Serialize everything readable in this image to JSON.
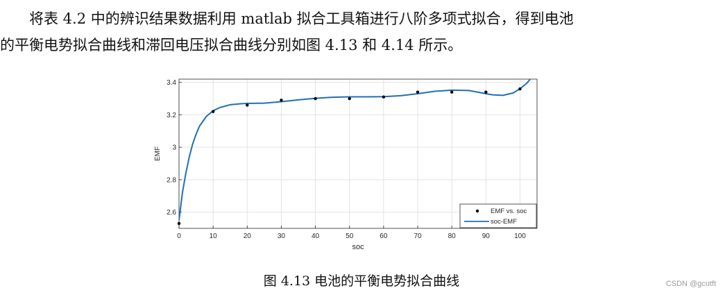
{
  "paragraph": {
    "line1": "将表 4.2 中的辨识结果数据利用 matlab 拟合工具箱进行八阶多项式拟合，得到电池",
    "line2": "的平衡电势拟合曲线和滞回电压拟合曲线分别如图 4.13 和 4.14 所示。"
  },
  "caption": "图 4.13  电池的平衡电势拟合曲线",
  "watermark": "CSDN @gcutft",
  "chart_data": {
    "type": "scatter",
    "xlabel": "soc",
    "ylabel": "EMF",
    "xlim": [
      0,
      105
    ],
    "ylim": [
      2.5,
      3.42
    ],
    "xticks": [
      0,
      10,
      20,
      30,
      40,
      50,
      60,
      70,
      80,
      90,
      100
    ],
    "yticks": [
      2.6,
      2.8,
      3,
      3.2,
      3.4
    ],
    "ytick_labels": [
      "2.6",
      "2.8",
      "3",
      "3.2",
      "3.4"
    ],
    "grid": true,
    "legend_position": "bottom-right",
    "series": [
      {
        "name": "EMF vs. soc",
        "kind": "points",
        "color": "#000000",
        "x": [
          0,
          10,
          20,
          30,
          40,
          50,
          60,
          70,
          80,
          90,
          100
        ],
        "y": [
          2.53,
          3.22,
          3.26,
          3.29,
          3.3,
          3.3,
          3.31,
          3.34,
          3.34,
          3.34,
          3.36
        ]
      },
      {
        "name": "soc-EMF",
        "kind": "line",
        "color": "#1f6fb5",
        "x": [
          0,
          1,
          2,
          3,
          4,
          5,
          6,
          7,
          8,
          10,
          12,
          15,
          18,
          20,
          25,
          30,
          35,
          40,
          45,
          50,
          55,
          60,
          65,
          70,
          75,
          80,
          85,
          88,
          90,
          92,
          95,
          98,
          100,
          102,
          103
        ],
        "y": [
          2.55,
          2.72,
          2.84,
          2.94,
          3.02,
          3.08,
          3.13,
          3.16,
          3.19,
          3.225,
          3.245,
          3.262,
          3.268,
          3.27,
          3.272,
          3.281,
          3.292,
          3.302,
          3.308,
          3.311,
          3.311,
          3.312,
          3.318,
          3.33,
          3.345,
          3.352,
          3.35,
          3.338,
          3.33,
          3.323,
          3.32,
          3.335,
          3.36,
          3.395,
          3.42
        ]
      }
    ]
  }
}
